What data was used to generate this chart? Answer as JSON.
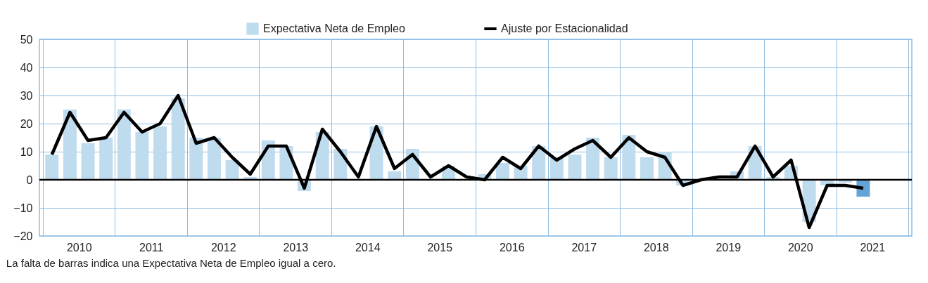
{
  "chart_data": {
    "type": "bar",
    "x": [
      2010.125,
      2010.375,
      2010.625,
      2010.875,
      2011.125,
      2011.375,
      2011.625,
      2011.875,
      2012.125,
      2012.375,
      2012.625,
      2012.875,
      2013.125,
      2013.375,
      2013.625,
      2013.875,
      2014.125,
      2014.375,
      2014.625,
      2014.875,
      2015.125,
      2015.375,
      2015.625,
      2015.875,
      2016.125,
      2016.375,
      2016.625,
      2016.875,
      2017.125,
      2017.375,
      2017.625,
      2017.875,
      2018.125,
      2018.375,
      2018.625,
      2018.875,
      2019.125,
      2019.375,
      2019.625,
      2019.875,
      2020.125,
      2020.375,
      2020.625,
      2020.875,
      2021.125,
      2021.375
    ],
    "series": [
      {
        "name": "Expectativa Neta de Empleo",
        "color": "#bfdbee",
        "colors": [
          "#bfdbee",
          "#bfdbee",
          "#bfdbee",
          "#bfdbee",
          "#bfdbee",
          "#bfdbee",
          "#bfdbee",
          "#bfdbee",
          "#bfdbee",
          "#bfdbee",
          "#bfdbee",
          "#bfdbee",
          "#bfdbee",
          "#bfdbee",
          "#bfdbee",
          "#bfdbee",
          "#bfdbee",
          "#bfdbee",
          "#bfdbee",
          "#bfdbee",
          "#bfdbee",
          "#bfdbee",
          "#bfdbee",
          "#bfdbee",
          "#bfdbee",
          "#bfdbee",
          "#bfdbee",
          "#bfdbee",
          "#bfdbee",
          "#bfdbee",
          "#bfdbee",
          "#bfdbee",
          "#bfdbee",
          "#bfdbee",
          "#bfdbee",
          "#bfdbee",
          "#bfdbee",
          "#bfdbee",
          "#bfdbee",
          "#bfdbee",
          "#bfdbee",
          "#bfdbee",
          "#bfdbee",
          "#bfdbee",
          "#bfdbee",
          "#62a4d6"
        ],
        "values": [
          9,
          25,
          13,
          15,
          25,
          17,
          19,
          29,
          15,
          15,
          7,
          1,
          14,
          12,
          -4,
          17,
          11,
          0,
          19,
          3,
          11,
          0,
          5,
          0,
          2,
          6,
          5,
          12,
          8,
          9,
          15,
          8,
          16,
          8,
          10,
          -2,
          0,
          0,
          3,
          12,
          1,
          5,
          -15,
          -2,
          -1,
          -6
        ]
      },
      {
        "name": "Ajuste por Estacionalidad",
        "type": "line",
        "color": "#000000",
        "values": [
          9,
          24,
          14,
          15,
          24,
          17,
          20,
          30,
          13,
          15,
          8,
          2,
          12,
          12,
          -3,
          18,
          10,
          1,
          19,
          4,
          9,
          1,
          5,
          1,
          0,
          8,
          4,
          12,
          7,
          11,
          14,
          8,
          15,
          10,
          8,
          -2,
          0,
          1,
          1,
          12,
          1,
          7,
          -17,
          -2,
          -2,
          -3
        ]
      }
    ],
    "xlim": [
      2010,
      2022
    ],
    "xticks": [
      {
        "value": 2010,
        "label": null
      },
      {
        "value": 2010.5,
        "label": "2010"
      },
      {
        "value": 2011,
        "label": null
      },
      {
        "value": 2011.5,
        "label": "2011"
      },
      {
        "value": 2012,
        "label": null
      },
      {
        "value": 2012.5,
        "label": "2012"
      },
      {
        "value": 2013,
        "label": null
      },
      {
        "value": 2013.5,
        "label": "2013"
      },
      {
        "value": 2014,
        "label": null
      },
      {
        "value": 2014.5,
        "label": "2014"
      },
      {
        "value": 2015,
        "label": null
      },
      {
        "value": 2015.5,
        "label": "2015"
      },
      {
        "value": 2016,
        "label": null
      },
      {
        "value": 2016.5,
        "label": "2016"
      },
      {
        "value": 2017,
        "label": null
      },
      {
        "value": 2017.5,
        "label": "2017"
      },
      {
        "value": 2018,
        "label": null
      },
      {
        "value": 2018.5,
        "label": "2018"
      },
      {
        "value": 2019,
        "label": null
      },
      {
        "value": 2019.5,
        "label": "2019"
      },
      {
        "value": 2020,
        "label": null
      },
      {
        "value": 2020.5,
        "label": "2020"
      },
      {
        "value": 2021,
        "label": null
      },
      {
        "value": 2021.5,
        "label": "2021"
      },
      {
        "value": 2022,
        "label": null
      }
    ],
    "ylim": [
      -20,
      50
    ],
    "yticks": [
      -20,
      -10,
      0,
      10,
      20,
      30,
      40,
      50
    ],
    "ref_lines": [
      {
        "axis": "y",
        "value": 0,
        "color": "#000000"
      }
    ],
    "grid": true,
    "legend": "top",
    "line_style": "solid",
    "marker": "none",
    "annotations": [
      "La falta de barras indica una Expectativa Neta de Empleo igual a cero."
    ]
  }
}
